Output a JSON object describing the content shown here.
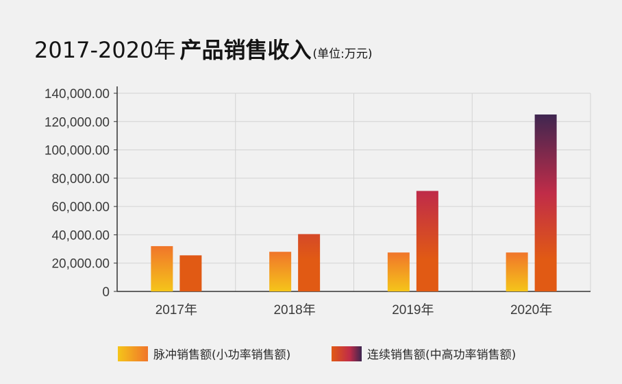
{
  "title": {
    "years": "2017-2020年",
    "main": "产品销售收入",
    "unit": "(单位:万元)"
  },
  "colors": {
    "pulse_top": "#f0752a",
    "pulse_bottom": "#f5c51a",
    "cont_top": "#e15a14",
    "cont_bottom": "#e15a14",
    "cont_mid": "#c02c48",
    "cont_dark": "#3d2650",
    "grid": "#d2d2d2",
    "axis": "#333333",
    "text": "#3a3a3a"
  },
  "chart_data": {
    "type": "bar",
    "categories": [
      "2017年",
      "2018年",
      "2019年",
      "2020年"
    ],
    "series": [
      {
        "name": "脉冲销售额(小功率销售额)",
        "values": [
          32000,
          28000,
          27500,
          27500
        ]
      },
      {
        "name": "连续销售额(中高功率销售额)",
        "values": [
          25500,
          40500,
          71000,
          125000
        ]
      }
    ],
    "ylim": [
      0,
      140000
    ],
    "yticks": [
      0,
      20000,
      40000,
      60000,
      80000,
      100000,
      120000,
      140000
    ],
    "ytick_labels": [
      "0",
      "20,000.00",
      "40,000.00",
      "60,000.00",
      "80,000.00",
      "100,000.00",
      "120,000.00",
      "140,000.00"
    ],
    "grid": true,
    "legend_position": "bottom"
  }
}
